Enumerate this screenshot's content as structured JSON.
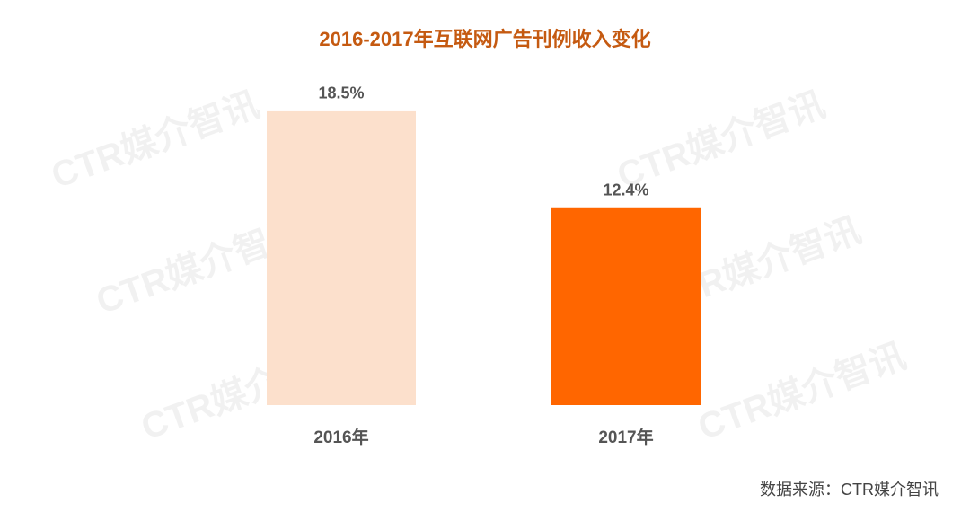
{
  "chart_data": {
    "type": "bar",
    "title": "2016-2017年互联网广告刊例收入变化",
    "categories": [
      "2016年",
      "2017年"
    ],
    "values": [
      18.5,
      12.4
    ],
    "value_labels": [
      "18.5%",
      "12.4%"
    ],
    "colors": [
      "#fce0cc",
      "#ff6600"
    ],
    "source": "数据来源：CTR媒介智讯",
    "watermark": "CTR媒介智讯"
  }
}
